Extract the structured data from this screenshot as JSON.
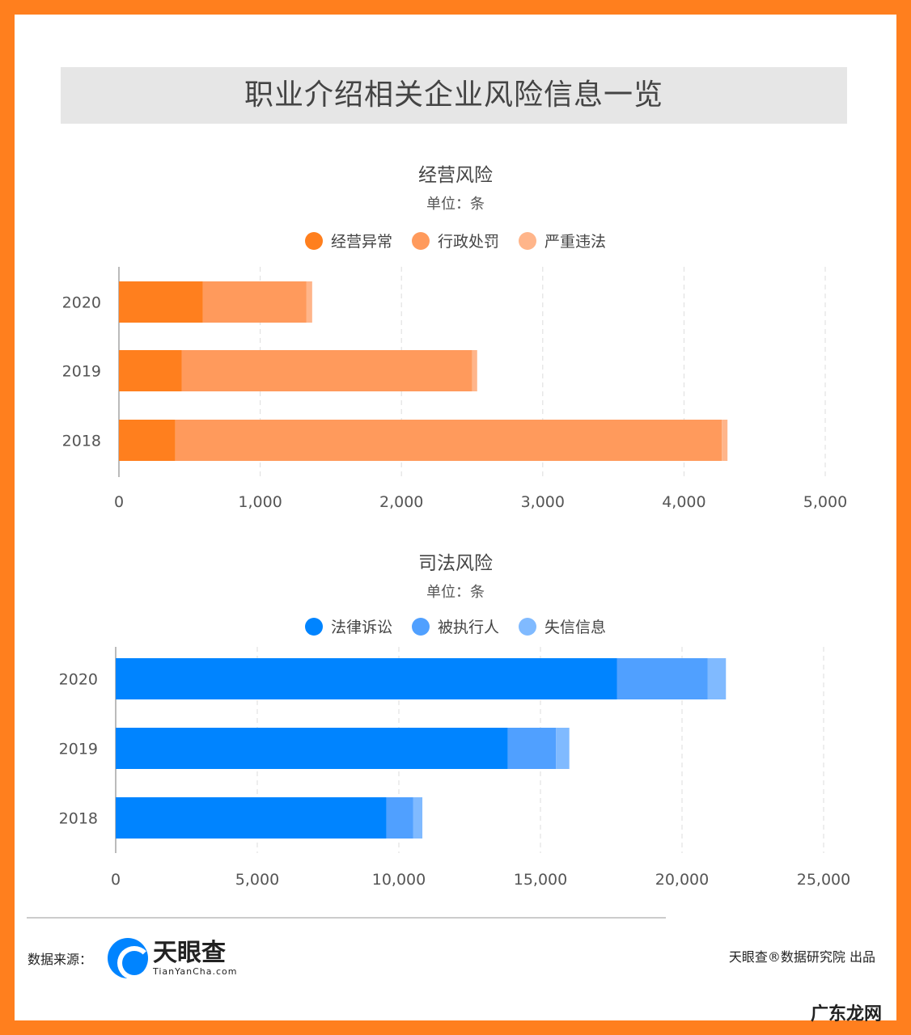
{
  "title": "职业介绍相关企业风险信息一览",
  "chart_data": [
    {
      "type": "bar",
      "orientation": "horizontal",
      "stacked": true,
      "title": "经营风险",
      "subtitle": "单位：条",
      "categories": [
        "2020",
        "2019",
        "2018"
      ],
      "series": [
        {
          "name": "经营异常",
          "color": "#FF7F1E",
          "values": [
            593,
            444,
            399
          ]
        },
        {
          "name": "行政处罚",
          "color": "#FF9A5C",
          "values": [
            735,
            2057,
            3869
          ]
        },
        {
          "name": "严重违法",
          "color": "#FFB58A",
          "values": [
            40,
            35,
            40
          ]
        }
      ],
      "xlim": [
        0,
        5000
      ],
      "xticks": [
        "0",
        "1,000",
        "2,000",
        "3,000",
        "4,000",
        "5,000"
      ],
      "grid": true,
      "legend": "top"
    },
    {
      "type": "bar",
      "orientation": "horizontal",
      "stacked": true,
      "title": "司法风险",
      "subtitle": "单位：条",
      "categories": [
        "2020",
        "2019",
        "2018"
      ],
      "series": [
        {
          "name": "法律诉讼",
          "color": "#0084FF",
          "values": [
            17700,
            13850,
            9560
          ]
        },
        {
          "name": "被执行人",
          "color": "#50A0FF",
          "values": [
            3200,
            1700,
            940
          ]
        },
        {
          "name": "失信信息",
          "color": "#80BAFF",
          "values": [
            650,
            470,
            330
          ]
        }
      ],
      "xlim": [
        0,
        25000
      ],
      "xticks": [
        "0",
        "5,000",
        "10,000",
        "15,000",
        "20,000",
        "25,000"
      ],
      "grid": true,
      "legend": "top"
    }
  ],
  "footer": {
    "source_label": "数据来源：",
    "logo_text": "天眼查",
    "logo_sub": "TianYanCha.com",
    "publisher": "天眼查®数据研究院 出品",
    "watermark": "广东龙网"
  }
}
